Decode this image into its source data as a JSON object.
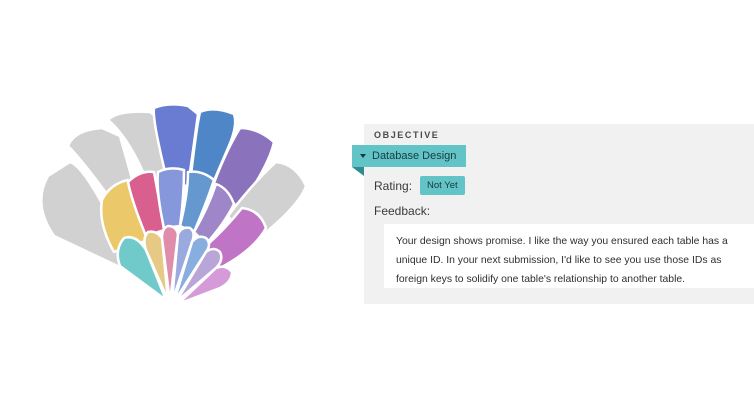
{
  "illustration": {
    "name": "colorful-fan",
    "colors": {
      "gray": "#d1d1d1",
      "indigo": "#6a7bd2",
      "blue": "#4f86c8",
      "purple": "#8b72bd",
      "yellow": "#ebc96a",
      "pink": "#d95f8e",
      "periwinkle": "#8797db",
      "steel_blue": "#6498cf",
      "lavender": "#9e86c9",
      "orchid": "#bf74c6",
      "teal": "#6fcac9"
    }
  },
  "card": {
    "heading": "OBJECTIVE",
    "objective_tag": "Database Design",
    "rating_label": "Rating:",
    "rating_value": "Not Yet",
    "feedback_label": "Feedback:",
    "feedback_text": "Your design shows promise. I like the way you ensured each table has a unique ID. In your next submission, I'd like to see you use those IDs as foreign keys to solidify one table's relationship to another table.",
    "accent_color": "#63c4c8"
  }
}
